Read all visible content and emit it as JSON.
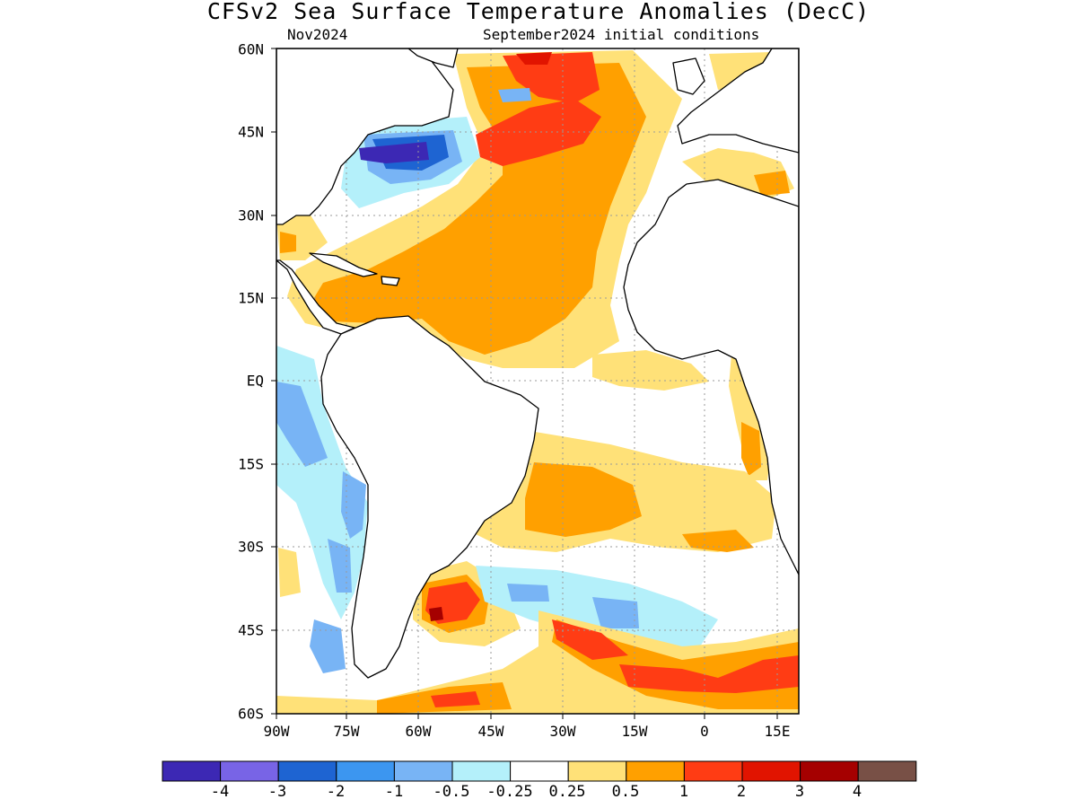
{
  "title": "CFSv2 Sea Surface Temperature Anomalies (DecC)",
  "subtitle_left": "Nov2024",
  "subtitle_right": "September2024 initial conditions",
  "lat_labels": [
    "60N",
    "45N",
    "30N",
    "15N",
    "EQ",
    "15S",
    "30S",
    "45S",
    "60S"
  ],
  "lon_labels": [
    "90W",
    "75W",
    "60W",
    "45W",
    "30W",
    "15W",
    "0",
    "15E"
  ],
  "colorbar": {
    "colors": [
      "#3c28b4",
      "#7864e6",
      "#1e64d2",
      "#3c96f0",
      "#78b4f5",
      "#b4f0fa",
      "#ffffff",
      "#ffe178",
      "#ffa000",
      "#ff3c14",
      "#e11400",
      "#a50000",
      "#785046"
    ],
    "labels": [
      "-4",
      "-3",
      "-2",
      "-1",
      "-0.5",
      "-0.25",
      "0.25",
      "0.5",
      "1",
      "2",
      "3",
      "4"
    ]
  },
  "map_colors": {
    "land": "#ffffff",
    "coast": "#000000",
    "grid": "#9a9a9a"
  }
}
